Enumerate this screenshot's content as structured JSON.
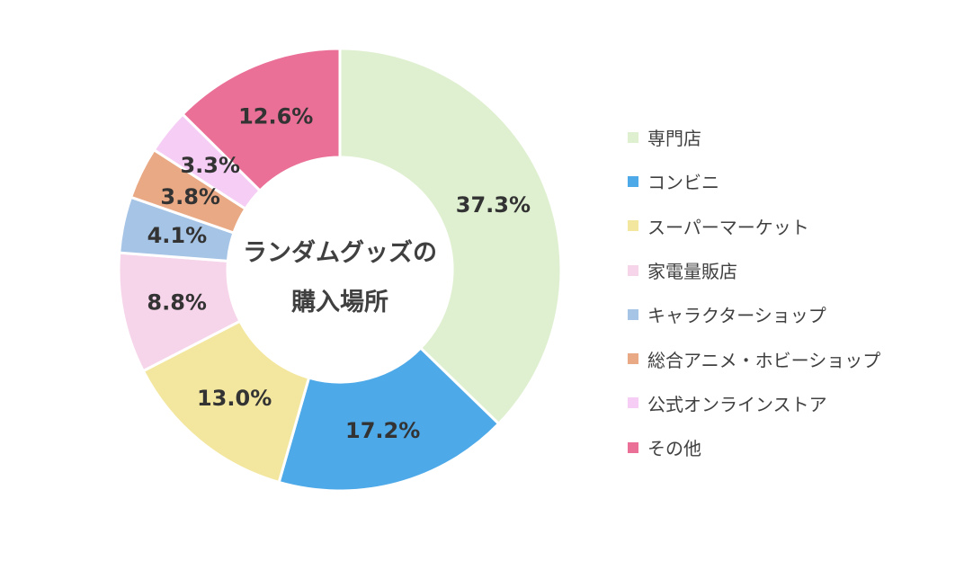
{
  "chart_data": {
    "type": "pie",
    "variant": "donut",
    "center_label": [
      "ランダムグッズの",
      "購入場所"
    ],
    "categories": [
      "専門店",
      "コンビニ",
      "スーパーマーケット",
      "家電量販店",
      "キャラクターショップ",
      "総合アニメ・ホビーショップ",
      "公式オンラインストア",
      "その他"
    ],
    "values": [
      37.3,
      17.2,
      13.0,
      8.8,
      4.1,
      3.8,
      3.3,
      12.6
    ],
    "value_labels": [
      "37.3%",
      "17.2%",
      "13.0%",
      "8.8%",
      "4.1%",
      "3.8%",
      "3.3%",
      "12.6%"
    ],
    "colors": [
      "#dff0d0",
      "#4da9e8",
      "#f3e7a0",
      "#f6d4ea",
      "#a6c4e6",
      "#e9a985",
      "#f6cdf5",
      "#ea7097"
    ],
    "legend_placement": "right"
  }
}
